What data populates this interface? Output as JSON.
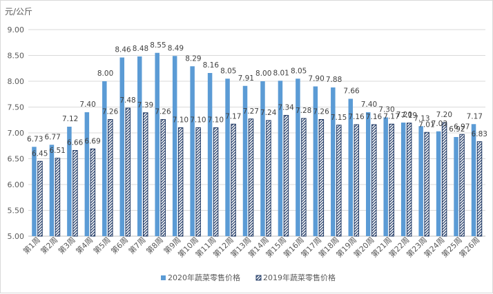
{
  "chart_data": {
    "type": "bar",
    "ylabel": "元/公斤",
    "ylim": [
      5.0,
      9.0
    ],
    "ytick_step": 0.5,
    "ytick_labels": [
      "5.00",
      "5.50",
      "6.00",
      "6.50",
      "7.00",
      "7.50",
      "8.00",
      "8.50",
      "9.00"
    ],
    "grid": true,
    "legend_position": "bottom",
    "categories": [
      "第1周",
      "第2周",
      "第3周",
      "第4周",
      "第5周",
      "第6周",
      "第7周",
      "第8周",
      "第9周",
      "第10周",
      "第11周",
      "第12周",
      "第13周",
      "第14周",
      "第15周",
      "第16周",
      "第17周",
      "第18周",
      "第19周",
      "第20周",
      "第21周",
      "第22周",
      "第23周",
      "第24周",
      "第25周",
      "第26周"
    ],
    "series": [
      {
        "name": "2020年蔬菜零售价格",
        "color": "#5b9bd5",
        "pattern": "solid",
        "values": [
          6.73,
          6.77,
          7.12,
          7.4,
          8.0,
          8.46,
          8.48,
          8.55,
          8.49,
          8.29,
          8.16,
          8.05,
          7.91,
          8.0,
          8.01,
          8.05,
          7.9,
          7.88,
          7.66,
          7.4,
          7.3,
          7.2,
          7.13,
          7.03,
          6.92,
          7.17
        ],
        "labels": [
          "6.73",
          "6.77",
          "7.12",
          "7.40",
          "8.00",
          "8.46",
          "8.48",
          "8.55",
          "8.49",
          "8.29",
          "8.16",
          "8.05",
          "7.91",
          "8.00",
          "8.01",
          "8.05",
          "7.90",
          "7.88",
          "7.66",
          "7.40",
          "7.30",
          "7.20",
          "7.13",
          "7.03",
          "6.92",
          "7.17"
        ]
      },
      {
        "name": "2019年蔬菜零售价格",
        "color": "#1f3864",
        "pattern": "diagonal-hatch",
        "values": [
          6.45,
          6.51,
          6.66,
          6.69,
          7.26,
          7.48,
          7.39,
          7.26,
          7.1,
          7.1,
          7.1,
          7.17,
          7.27,
          7.24,
          7.34,
          7.28,
          7.26,
          7.15,
          7.16,
          7.16,
          7.17,
          7.19,
          7.01,
          7.2,
          6.97,
          6.83
        ],
        "labels": [
          "6.45",
          "6.51",
          "6.66",
          "6.69",
          "7.26",
          "7.48",
          "7.39",
          "7.26",
          "7.10",
          "7.10",
          "7.10",
          "7.17",
          "7.27",
          "7.24",
          "7.34",
          "7.28",
          "7.26",
          "7.15",
          "7.16",
          "7.16",
          "7.17",
          "7.19",
          "7.01",
          "7.20",
          "6.97",
          "6.83"
        ]
      }
    ]
  }
}
